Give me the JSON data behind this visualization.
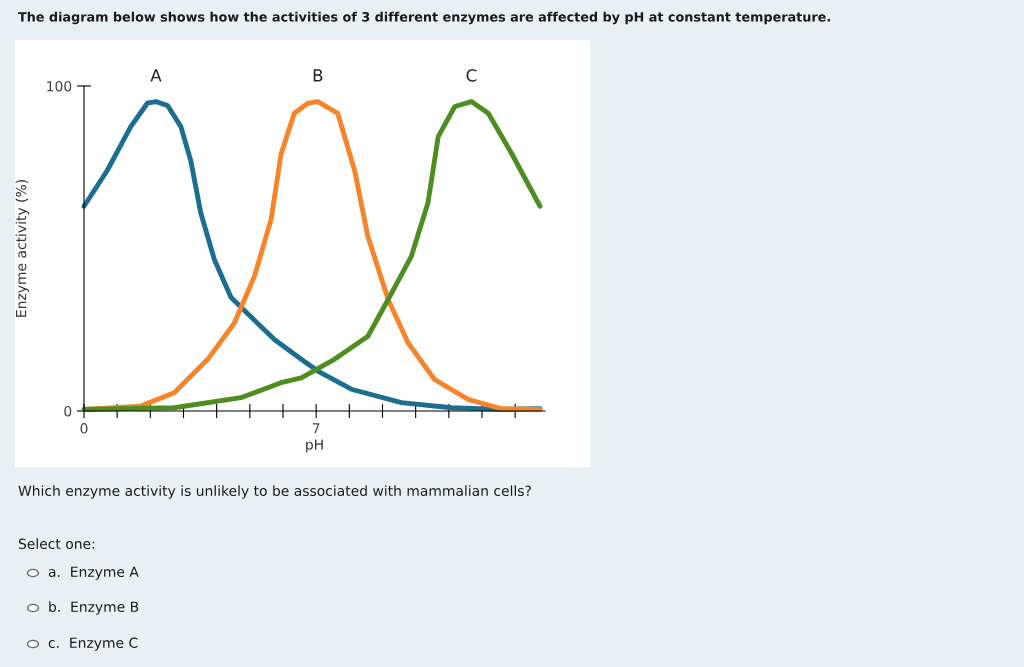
{
  "chart_data": {
    "type": "line",
    "title": "The diagram below shows how the activities of 3 different enzymes are affected by pH at constant temperature.",
    "xlabel": "pH",
    "ylabel": "Enzyme activity (%)",
    "xlim": [
      0,
      13.9
    ],
    "ylim": [
      0,
      100
    ],
    "xticks": [
      0,
      {
        "value": 1,
        "label": null
      },
      {
        "value": 2,
        "label": null
      },
      {
        "value": 3,
        "label": null
      },
      {
        "value": 4,
        "label": null
      },
      {
        "value": 5,
        "label": null
      },
      {
        "value": 6,
        "label": null
      },
      7,
      {
        "value": 8,
        "label": null
      },
      {
        "value": 9,
        "label": null
      },
      {
        "value": 10,
        "label": null
      },
      {
        "value": 11,
        "label": null
      },
      {
        "value": 12,
        "label": null
      },
      {
        "value": 13,
        "label": null
      }
    ],
    "yticks": [
      0,
      100
    ],
    "grid": false,
    "legend": false,
    "marker": "none",
    "line_style": "solid",
    "series": [
      {
        "name": "A",
        "color": "#1b6e8f",
        "x": [
          0,
          0.7,
          1.41,
          1.91,
          2.17,
          2.52,
          2.92,
          3.22,
          3.52,
          3.93,
          4.43,
          4.93,
          5.74,
          6.55,
          7.05,
          8.06,
          9.57,
          11.08,
          12.6,
          13.75
        ],
        "values": [
          63,
          74,
          87.5,
          94.7,
          95.2,
          94,
          87.5,
          77,
          61,
          46.6,
          35,
          30,
          22,
          15.9,
          12.3,
          6.7,
          2.6,
          1,
          0.5,
          0.7
        ]
      },
      {
        "name": "B",
        "color": "#f5842b",
        "x": [
          0,
          1.71,
          2.72,
          3.73,
          4.53,
          5.14,
          5.64,
          5.94,
          6.34,
          6.75,
          7.05,
          7.65,
          8.16,
          8.56,
          9.17,
          9.77,
          10.57,
          11.58,
          12.59,
          13.75
        ],
        "values": [
          0.5,
          1.5,
          5.6,
          15.9,
          27,
          41.5,
          58.9,
          79,
          91.6,
          94.7,
          95.2,
          91.6,
          74,
          53.7,
          34.3,
          21,
          9.7,
          3.6,
          0.7,
          0.5
        ]
      },
      {
        "name": "C",
        "color": "#4e8d20",
        "x": [
          0,
          2.72,
          4.73,
          5.94,
          6.55,
          7.55,
          8.56,
          9.17,
          9.87,
          10.37,
          10.68,
          11.18,
          11.68,
          12.19,
          12.89,
          13.75
        ],
        "values": [
          0.5,
          1,
          4.1,
          8.7,
          10.2,
          15.9,
          23,
          34.3,
          47.6,
          64,
          84.4,
          93.7,
          95.2,
          91.6,
          79.3,
          63
        ]
      }
    ],
    "annotations": [
      "Which enzyme activity is unlikely to be associated with mammalian cells?",
      "Select one:",
      "a.  Enzyme A",
      "b.  Enzyme B",
      "c.  Enzyme C"
    ]
  }
}
